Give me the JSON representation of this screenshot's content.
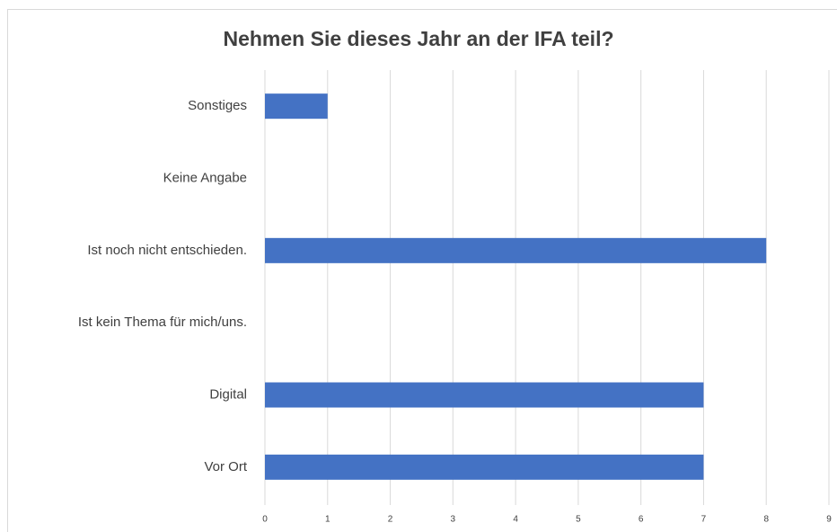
{
  "chart_data": {
    "type": "hbar",
    "title": "Nehmen Sie dieses Jahr an der IFA teil?",
    "categories": [
      "Sonstiges",
      "Keine Angabe",
      "Ist noch nicht entschieden.",
      "Ist kein Thema für mich/uns.",
      "Digital",
      "Vor Ort"
    ],
    "values": [
      1,
      0,
      8,
      0,
      7,
      7
    ],
    "color": "#4472c4",
    "xlim": [
      0,
      9
    ],
    "xticks": [
      0,
      1,
      2,
      3,
      4,
      5,
      6,
      7,
      8,
      9
    ],
    "grid": true
  }
}
